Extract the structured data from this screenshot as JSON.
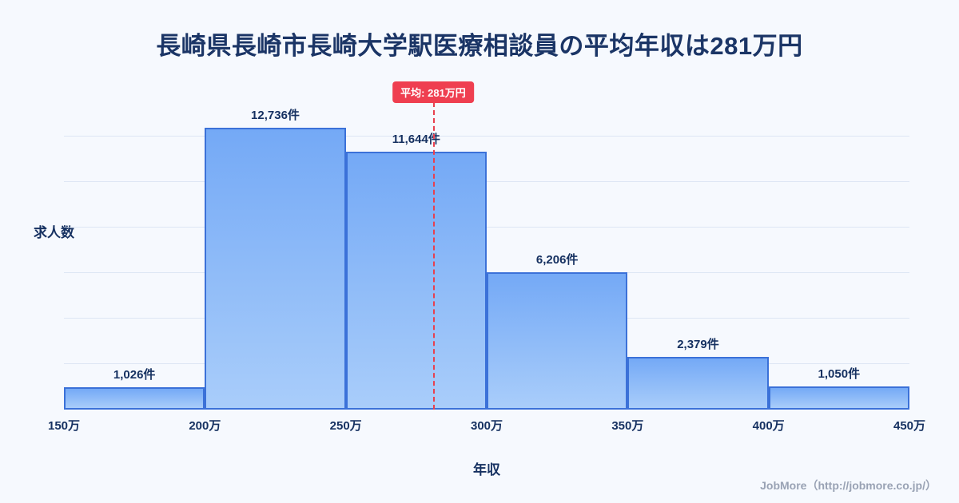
{
  "title": "長崎県長崎市長崎大学駅医療相談員の平均年収は281万円",
  "footer": "JobMore（http://jobmore.co.jp/）",
  "colors": {
    "background": "#f6f9fe",
    "bar_fill_top": "#74a9f6",
    "bar_fill_bottom": "#a9cdfa",
    "bar_border": "#3b71d8",
    "average_line": "#e8404f",
    "badge_background": "#ef3f50",
    "badge_text": "#ffffff",
    "title_text": "#1b3566",
    "axis_text": "#163161",
    "footer_text": "#99a2b4"
  },
  "chart_data": {
    "type": "bar",
    "title": "長崎県長崎市長崎大学駅医療相談員の平均年収は281万円",
    "xlabel": "年収",
    "ylabel": "求人数",
    "x_ticks": [
      "150万",
      "200万",
      "250万",
      "300万",
      "350万",
      "400万",
      "450万"
    ],
    "bin_edges_man_yen": [
      150,
      200,
      250,
      300,
      350,
      400,
      450
    ],
    "values": [
      1026,
      12736,
      11644,
      6206,
      2379,
      1050
    ],
    "bar_labels": [
      "1,026件",
      "12,736件",
      "11,644件",
      "6,206件",
      "2,379件",
      "1,050件"
    ],
    "average": 281,
    "average_label": "平均: 281万円",
    "x_range": [
      150,
      450
    ],
    "grid": true,
    "legend": false
  }
}
